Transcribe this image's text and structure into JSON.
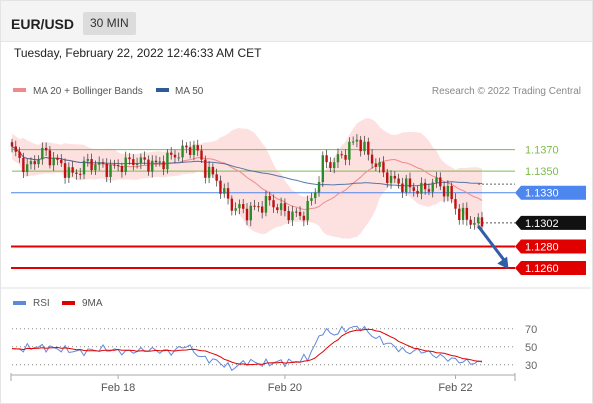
{
  "header": {
    "symbol": "EUR/USD",
    "timeframe": "30 MIN",
    "timestamp": "Tuesday, February 22, 2022 12:46:33 AM CET"
  },
  "colors": {
    "ma20": "#f08a8a",
    "band": "#fcd6d6",
    "ma50": "#2e5a98",
    "resistance": "#7cbd4a",
    "support": "#e00000",
    "current": "#4d86ee",
    "last": "#111111",
    "candle_up": "#2c8a28",
    "candle_down": "#c01010",
    "rsi": "#5f88dd",
    "rsi_ma": "#e00000",
    "arrow": "#2e5fa8"
  },
  "chart_data": [
    {
      "type": "candlestick",
      "legend": [
        {
          "name": "MA 20 + Bollinger Bands",
          "color": "#f08a8a"
        },
        {
          "name": "MA 50",
          "color": "#2e5a98"
        }
      ],
      "legend_position": "top-left",
      "credit": "Research © 2022 Trading Central",
      "ylim": [
        1.1247,
        1.1405
      ],
      "grid": false,
      "price_levels": [
        {
          "value": 1.137,
          "label": "1.1370",
          "kind": "resistance"
        },
        {
          "value": 1.135,
          "label": "1.1350",
          "kind": "resistance"
        },
        {
          "value": 1.133,
          "label": "1.1330",
          "kind": "current"
        },
        {
          "value": 1.1302,
          "label": "1.1302",
          "kind": "last"
        },
        {
          "value": 1.128,
          "label": "1.1280",
          "kind": "support"
        },
        {
          "value": 1.126,
          "label": "1.1260",
          "kind": "support"
        }
      ],
      "path_anchors": [
        [
          0,
          1.137
        ],
        [
          4,
          1.1352
        ],
        [
          8,
          1.1368
        ],
        [
          12,
          1.1358
        ],
        [
          16,
          1.1346
        ],
        [
          20,
          1.1358
        ],
        [
          26,
          1.1352
        ],
        [
          32,
          1.136
        ],
        [
          38,
          1.1356
        ],
        [
          44,
          1.1367
        ],
        [
          48,
          1.1373
        ],
        [
          51,
          1.1352
        ],
        [
          54,
          1.1342
        ],
        [
          56,
          1.1328
        ],
        [
          58,
          1.1318
        ],
        [
          62,
          1.1312
        ],
        [
          68,
          1.1322
        ],
        [
          72,
          1.1312
        ],
        [
          76,
          1.1308
        ],
        [
          78,
          1.1316
        ],
        [
          80,
          1.1332
        ],
        [
          82,
          1.1358
        ],
        [
          85,
          1.1358
        ],
        [
          88,
          1.1368
        ],
        [
          91,
          1.138
        ],
        [
          93,
          1.137
        ],
        [
          96,
          1.1356
        ],
        [
          100,
          1.1342
        ],
        [
          104,
          1.1336
        ],
        [
          108,
          1.1332
        ],
        [
          112,
          1.134
        ],
        [
          115,
          1.133
        ],
        [
          118,
          1.131
        ],
        [
          121,
          1.1304
        ],
        [
          124,
          1.13
        ]
      ],
      "x_ticks": [
        {
          "label": "Feb 18",
          "index": 28
        },
        {
          "label": "Feb 20",
          "index": 72
        },
        {
          "label": "Feb 22",
          "index": 117
        }
      ],
      "forecast_arrow": {
        "from": [
          123,
          1.1299
        ],
        "to": [
          131,
          1.1259
        ]
      }
    },
    {
      "type": "line",
      "legend": [
        {
          "name": "RSI",
          "color": "#5f88dd"
        },
        {
          "name": "9MA",
          "color": "#e00000"
        }
      ],
      "ylim": [
        22,
        82
      ],
      "levels": [
        {
          "value": 70,
          "label": "70"
        },
        {
          "value": 50,
          "label": "50"
        },
        {
          "value": 30,
          "label": "30"
        }
      ],
      "anchors": [
        [
          0,
          46
        ],
        [
          6,
          50
        ],
        [
          12,
          48
        ],
        [
          18,
          44
        ],
        [
          24,
          48
        ],
        [
          30,
          44
        ],
        [
          36,
          47
        ],
        [
          42,
          44
        ],
        [
          46,
          52
        ],
        [
          50,
          38
        ],
        [
          54,
          34
        ],
        [
          58,
          26
        ],
        [
          62,
          34
        ],
        [
          66,
          31
        ],
        [
          70,
          33
        ],
        [
          74,
          33
        ],
        [
          78,
          38
        ],
        [
          80,
          52
        ],
        [
          82,
          68
        ],
        [
          85,
          64
        ],
        [
          88,
          70
        ],
        [
          92,
          72
        ],
        [
          96,
          60
        ],
        [
          100,
          52
        ],
        [
          104,
          44
        ],
        [
          108,
          46
        ],
        [
          112,
          40
        ],
        [
          116,
          36
        ],
        [
          120,
          33
        ],
        [
          124,
          32
        ]
      ]
    }
  ]
}
